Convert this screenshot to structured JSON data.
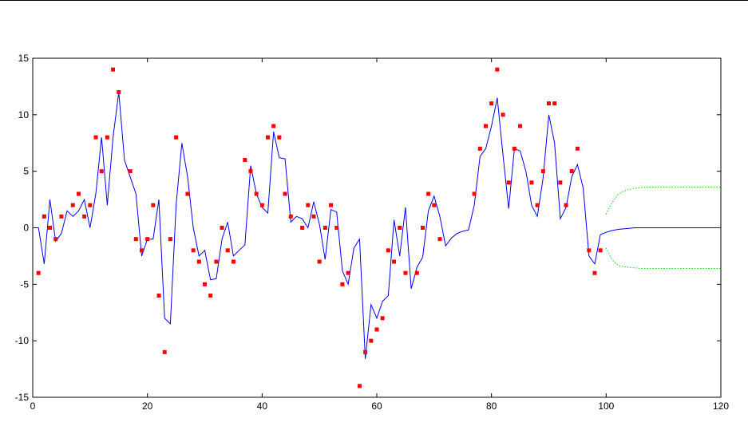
{
  "chart_data": {
    "type": "line",
    "title": "",
    "xlabel": "",
    "ylabel": "",
    "xlim": [
      0,
      120
    ],
    "ylim": [
      -15,
      15
    ],
    "xticks": [
      0,
      20,
      40,
      60,
      80,
      100,
      120
    ],
    "yticks": [
      -15,
      -10,
      -5,
      0,
      5,
      10,
      15
    ],
    "grid": false,
    "series": [
      {
        "style": "line",
        "color": "#0000ff",
        "x": [
          0,
          1,
          2,
          3,
          4,
          5,
          6,
          7,
          8,
          9,
          10,
          11,
          12,
          13,
          14,
          15,
          16,
          17,
          18,
          19,
          20,
          21,
          22,
          23,
          24,
          25,
          26,
          27,
          28,
          29,
          30,
          31,
          32,
          33,
          34,
          35,
          36,
          37,
          38,
          39,
          40,
          41,
          42,
          43,
          44,
          45,
          46,
          47,
          48,
          49,
          50,
          51,
          52,
          53,
          54,
          55,
          56,
          57,
          58,
          59,
          60,
          61,
          62,
          63,
          64,
          65,
          66,
          67,
          68,
          69,
          70,
          71,
          72,
          73,
          74,
          75,
          76,
          77,
          78,
          79,
          80,
          81,
          82,
          83,
          84,
          85,
          86,
          87,
          88,
          89,
          90,
          91,
          92,
          93,
          94,
          95,
          96,
          97,
          98,
          99,
          100,
          101,
          102,
          103,
          104,
          105,
          106,
          107,
          108,
          109,
          110,
          111,
          112,
          113,
          114,
          115,
          116,
          117,
          118,
          119,
          120
        ],
        "y": [
          0,
          0,
          -3.2,
          2.5,
          -1.2,
          -0.5,
          1.5,
          1,
          1.5,
          2.5,
          0,
          3,
          8,
          2,
          8,
          12,
          6,
          4.5,
          3,
          -2.5,
          -1,
          -1,
          2.5,
          -8,
          -8.5,
          2,
          7.5,
          4.5,
          0,
          -2.5,
          -2,
          -4.6,
          -4.5,
          -1,
          0.5,
          -2.5,
          -2,
          -1.5,
          5.5,
          3,
          1.8,
          1.3,
          8.5,
          6.2,
          6.1,
          0.5,
          1,
          0.8,
          0,
          2.3,
          0.3,
          -2.8,
          1.6,
          1.4,
          -3.8,
          -5,
          -1.8,
          -1,
          -11.6,
          -6.8,
          -8,
          -6.5,
          -6,
          0.7,
          -2.5,
          1.8,
          -5.4,
          -3.5,
          -2.6,
          1.5,
          2.8,
          1,
          -1.6,
          -0.9,
          -0.5,
          -0.3,
          -0.2,
          2,
          6.3,
          7,
          9,
          11.5,
          6.5,
          1.7,
          7,
          6.8,
          5,
          2,
          1,
          4.4,
          10,
          7.5,
          0.8,
          1.8,
          4.5,
          5.6,
          3.5,
          -2.5,
          -3.2,
          -0.6,
          -0.4,
          -0.25,
          -0.15,
          -0.1,
          -0.05,
          0,
          0,
          0,
          0,
          0,
          0,
          0,
          0,
          0,
          0,
          0,
          0,
          0,
          0,
          0,
          0
        ]
      },
      {
        "style": "markers",
        "color": "#ff0000",
        "x": [
          1,
          2,
          3,
          4,
          5,
          7,
          8,
          9,
          10,
          11,
          12,
          13,
          14,
          15,
          17,
          18,
          19,
          20,
          21,
          22,
          23,
          24,
          25,
          27,
          28,
          29,
          30,
          31,
          32,
          33,
          34,
          35,
          37,
          38,
          39,
          40,
          41,
          42,
          43,
          44,
          45,
          47,
          48,
          49,
          50,
          51,
          52,
          53,
          54,
          55,
          57,
          58,
          59,
          60,
          61,
          62,
          63,
          64,
          65,
          67,
          68,
          69,
          70,
          71,
          77,
          78,
          79,
          80,
          81,
          82,
          83,
          84,
          85,
          87,
          88,
          89,
          90,
          91,
          92,
          93,
          94,
          95,
          97,
          98,
          99
        ],
        "y": [
          -4,
          1,
          0,
          -1,
          1,
          2,
          3,
          1,
          2,
          8,
          5,
          8,
          14,
          12,
          5,
          -1,
          -2,
          -1,
          2,
          -6,
          -11,
          -1,
          8,
          3,
          -2,
          -3,
          -5,
          -6,
          -3,
          0,
          -2,
          -3,
          6,
          5,
          3,
          2,
          8,
          9,
          8,
          3,
          1,
          0,
          2,
          1,
          -3,
          0,
          2,
          0,
          -5,
          -4,
          -14,
          -11,
          -10,
          -9,
          -8,
          -2,
          -3,
          0,
          -4,
          -4,
          0,
          3,
          2,
          -1,
          3,
          7,
          9,
          11,
          14,
          10,
          4,
          7,
          9,
          4,
          2,
          5,
          11,
          11,
          4,
          2,
          5,
          7,
          -2,
          -4,
          -2
        ]
      },
      {
        "style": "dotted",
        "color": "#00dd00",
        "x": [
          100,
          101,
          102,
          103,
          104,
          105,
          106,
          107,
          108,
          109,
          110,
          111,
          112,
          113,
          114,
          115,
          116,
          117,
          118,
          119,
          120
        ],
        "y": [
          1.2,
          2.2,
          2.9,
          3.25,
          3.4,
          3.5,
          3.55,
          3.6,
          3.6,
          3.6,
          3.6,
          3.6,
          3.6,
          3.6,
          3.6,
          3.6,
          3.6,
          3.6,
          3.6,
          3.6,
          3.6
        ]
      },
      {
        "style": "dotted",
        "color": "#00dd00",
        "x": [
          100,
          101,
          102,
          103,
          104,
          105,
          106,
          107,
          108,
          109,
          110,
          111,
          112,
          113,
          114,
          115,
          116,
          117,
          118,
          119,
          120
        ],
        "y": [
          -1.8,
          -2.8,
          -3.3,
          -3.45,
          -3.5,
          -3.55,
          -3.6,
          -3.6,
          -3.6,
          -3.6,
          -3.6,
          -3.6,
          -3.6,
          -3.6,
          -3.6,
          -3.6,
          -3.6,
          -3.6,
          -3.6,
          -3.6,
          -3.6
        ]
      }
    ]
  }
}
